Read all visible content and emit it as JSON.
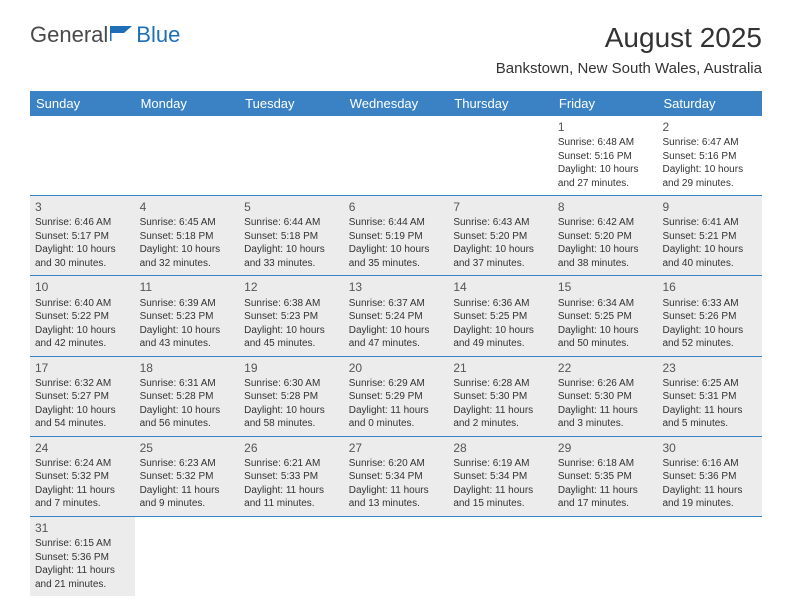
{
  "logo": {
    "text1": "General",
    "text2": "Blue"
  },
  "title": "August 2025",
  "location": "Bankstown, New South Wales, Australia",
  "day_headers": [
    "Sunday",
    "Monday",
    "Tuesday",
    "Wednesday",
    "Thursday",
    "Friday",
    "Saturday"
  ],
  "colors": {
    "header_bar": "#3b82c4",
    "row_border": "#3b82c4",
    "shaded_bg": "#ececec",
    "text": "#333333",
    "logo_text": "#4a4a4a",
    "logo_blue": "#1e6fb8"
  },
  "fonts": {
    "title_size": 28,
    "location_size": 15,
    "day_header_size": 13,
    "day_num_size": 12,
    "body_size": 10
  },
  "weeks": [
    [
      {
        "empty": true,
        "shaded": false
      },
      {
        "empty": true,
        "shaded": false
      },
      {
        "empty": true,
        "shaded": false
      },
      {
        "empty": true,
        "shaded": false
      },
      {
        "empty": true,
        "shaded": false
      },
      {
        "num": "1",
        "shaded": false,
        "sunrise": "Sunrise: 6:48 AM",
        "sunset": "Sunset: 5:16 PM",
        "day1": "Daylight: 10 hours",
        "day2": "and 27 minutes."
      },
      {
        "num": "2",
        "shaded": false,
        "sunrise": "Sunrise: 6:47 AM",
        "sunset": "Sunset: 5:16 PM",
        "day1": "Daylight: 10 hours",
        "day2": "and 29 minutes."
      }
    ],
    [
      {
        "num": "3",
        "shaded": true,
        "sunrise": "Sunrise: 6:46 AM",
        "sunset": "Sunset: 5:17 PM",
        "day1": "Daylight: 10 hours",
        "day2": "and 30 minutes."
      },
      {
        "num": "4",
        "shaded": true,
        "sunrise": "Sunrise: 6:45 AM",
        "sunset": "Sunset: 5:18 PM",
        "day1": "Daylight: 10 hours",
        "day2": "and 32 minutes."
      },
      {
        "num": "5",
        "shaded": true,
        "sunrise": "Sunrise: 6:44 AM",
        "sunset": "Sunset: 5:18 PM",
        "day1": "Daylight: 10 hours",
        "day2": "and 33 minutes."
      },
      {
        "num": "6",
        "shaded": true,
        "sunrise": "Sunrise: 6:44 AM",
        "sunset": "Sunset: 5:19 PM",
        "day1": "Daylight: 10 hours",
        "day2": "and 35 minutes."
      },
      {
        "num": "7",
        "shaded": true,
        "sunrise": "Sunrise: 6:43 AM",
        "sunset": "Sunset: 5:20 PM",
        "day1": "Daylight: 10 hours",
        "day2": "and 37 minutes."
      },
      {
        "num": "8",
        "shaded": true,
        "sunrise": "Sunrise: 6:42 AM",
        "sunset": "Sunset: 5:20 PM",
        "day1": "Daylight: 10 hours",
        "day2": "and 38 minutes."
      },
      {
        "num": "9",
        "shaded": true,
        "sunrise": "Sunrise: 6:41 AM",
        "sunset": "Sunset: 5:21 PM",
        "day1": "Daylight: 10 hours",
        "day2": "and 40 minutes."
      }
    ],
    [
      {
        "num": "10",
        "shaded": true,
        "sunrise": "Sunrise: 6:40 AM",
        "sunset": "Sunset: 5:22 PM",
        "day1": "Daylight: 10 hours",
        "day2": "and 42 minutes."
      },
      {
        "num": "11",
        "shaded": true,
        "sunrise": "Sunrise: 6:39 AM",
        "sunset": "Sunset: 5:23 PM",
        "day1": "Daylight: 10 hours",
        "day2": "and 43 minutes."
      },
      {
        "num": "12",
        "shaded": true,
        "sunrise": "Sunrise: 6:38 AM",
        "sunset": "Sunset: 5:23 PM",
        "day1": "Daylight: 10 hours",
        "day2": "and 45 minutes."
      },
      {
        "num": "13",
        "shaded": true,
        "sunrise": "Sunrise: 6:37 AM",
        "sunset": "Sunset: 5:24 PM",
        "day1": "Daylight: 10 hours",
        "day2": "and 47 minutes."
      },
      {
        "num": "14",
        "shaded": true,
        "sunrise": "Sunrise: 6:36 AM",
        "sunset": "Sunset: 5:25 PM",
        "day1": "Daylight: 10 hours",
        "day2": "and 49 minutes."
      },
      {
        "num": "15",
        "shaded": true,
        "sunrise": "Sunrise: 6:34 AM",
        "sunset": "Sunset: 5:25 PM",
        "day1": "Daylight: 10 hours",
        "day2": "and 50 minutes."
      },
      {
        "num": "16",
        "shaded": true,
        "sunrise": "Sunrise: 6:33 AM",
        "sunset": "Sunset: 5:26 PM",
        "day1": "Daylight: 10 hours",
        "day2": "and 52 minutes."
      }
    ],
    [
      {
        "num": "17",
        "shaded": true,
        "sunrise": "Sunrise: 6:32 AM",
        "sunset": "Sunset: 5:27 PM",
        "day1": "Daylight: 10 hours",
        "day2": "and 54 minutes."
      },
      {
        "num": "18",
        "shaded": true,
        "sunrise": "Sunrise: 6:31 AM",
        "sunset": "Sunset: 5:28 PM",
        "day1": "Daylight: 10 hours",
        "day2": "and 56 minutes."
      },
      {
        "num": "19",
        "shaded": true,
        "sunrise": "Sunrise: 6:30 AM",
        "sunset": "Sunset: 5:28 PM",
        "day1": "Daylight: 10 hours",
        "day2": "and 58 minutes."
      },
      {
        "num": "20",
        "shaded": true,
        "sunrise": "Sunrise: 6:29 AM",
        "sunset": "Sunset: 5:29 PM",
        "day1": "Daylight: 11 hours",
        "day2": "and 0 minutes."
      },
      {
        "num": "21",
        "shaded": true,
        "sunrise": "Sunrise: 6:28 AM",
        "sunset": "Sunset: 5:30 PM",
        "day1": "Daylight: 11 hours",
        "day2": "and 2 minutes."
      },
      {
        "num": "22",
        "shaded": true,
        "sunrise": "Sunrise: 6:26 AM",
        "sunset": "Sunset: 5:30 PM",
        "day1": "Daylight: 11 hours",
        "day2": "and 3 minutes."
      },
      {
        "num": "23",
        "shaded": true,
        "sunrise": "Sunrise: 6:25 AM",
        "sunset": "Sunset: 5:31 PM",
        "day1": "Daylight: 11 hours",
        "day2": "and 5 minutes."
      }
    ],
    [
      {
        "num": "24",
        "shaded": true,
        "sunrise": "Sunrise: 6:24 AM",
        "sunset": "Sunset: 5:32 PM",
        "day1": "Daylight: 11 hours",
        "day2": "and 7 minutes."
      },
      {
        "num": "25",
        "shaded": true,
        "sunrise": "Sunrise: 6:23 AM",
        "sunset": "Sunset: 5:32 PM",
        "day1": "Daylight: 11 hours",
        "day2": "and 9 minutes."
      },
      {
        "num": "26",
        "shaded": true,
        "sunrise": "Sunrise: 6:21 AM",
        "sunset": "Sunset: 5:33 PM",
        "day1": "Daylight: 11 hours",
        "day2": "and 11 minutes."
      },
      {
        "num": "27",
        "shaded": true,
        "sunrise": "Sunrise: 6:20 AM",
        "sunset": "Sunset: 5:34 PM",
        "day1": "Daylight: 11 hours",
        "day2": "and 13 minutes."
      },
      {
        "num": "28",
        "shaded": true,
        "sunrise": "Sunrise: 6:19 AM",
        "sunset": "Sunset: 5:34 PM",
        "day1": "Daylight: 11 hours",
        "day2": "and 15 minutes."
      },
      {
        "num": "29",
        "shaded": true,
        "sunrise": "Sunrise: 6:18 AM",
        "sunset": "Sunset: 5:35 PM",
        "day1": "Daylight: 11 hours",
        "day2": "and 17 minutes."
      },
      {
        "num": "30",
        "shaded": true,
        "sunrise": "Sunrise: 6:16 AM",
        "sunset": "Sunset: 5:36 PM",
        "day1": "Daylight: 11 hours",
        "day2": "and 19 minutes."
      }
    ],
    [
      {
        "num": "31",
        "shaded": true,
        "sunrise": "Sunrise: 6:15 AM",
        "sunset": "Sunset: 5:36 PM",
        "day1": "Daylight: 11 hours",
        "day2": "and 21 minutes."
      },
      {
        "empty": true,
        "shaded": false
      },
      {
        "empty": true,
        "shaded": false
      },
      {
        "empty": true,
        "shaded": false
      },
      {
        "empty": true,
        "shaded": false
      },
      {
        "empty": true,
        "shaded": false
      },
      {
        "empty": true,
        "shaded": false
      }
    ]
  ]
}
